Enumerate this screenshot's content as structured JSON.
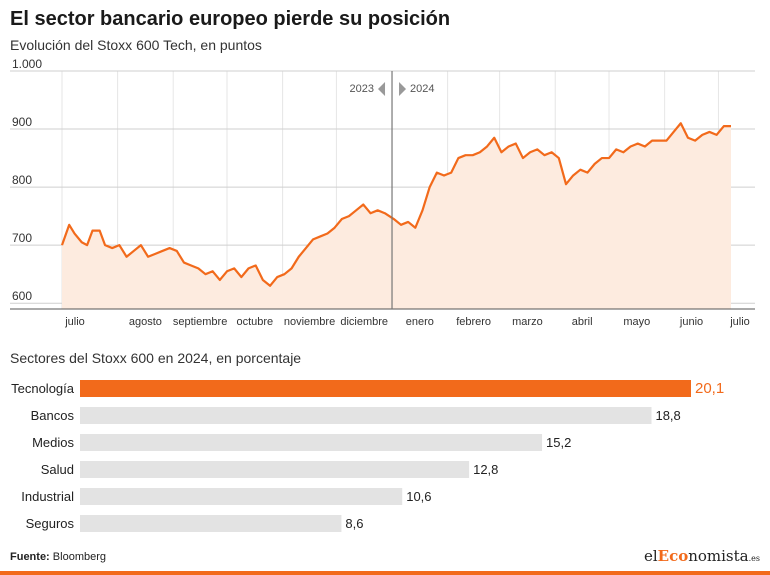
{
  "header": {
    "title": "El sector bancario europeo pierde su posición",
    "subtitle": "Evolución del Stoxx 600 Tech, en puntos"
  },
  "footer": {
    "source_label": "Fuente:",
    "source_value": "Bloomberg",
    "logo_prefix": "el",
    "logo_accent": "Eco",
    "logo_suffix": "nomista",
    "logo_tld": ".es"
  },
  "colors": {
    "accent": "#f26a1b",
    "area_fill": "#fdebdf",
    "bar_grey": "#e3e3e3",
    "grid": "#cfcfcf"
  },
  "chart_data": [
    {
      "type": "line",
      "subtitle": "Evolución del Stoxx 600 Tech, en puntos",
      "x_labels": [
        "julio",
        "agosto",
        "septiembre",
        "octubre",
        "noviembre",
        "diciembre",
        "enero",
        "febrero",
        "marzo",
        "abril",
        "mayo",
        "junio",
        "julio"
      ],
      "y_tick_labels": [
        "600",
        "700",
        "800",
        "900",
        "1.000"
      ],
      "y_ticks": [
        600,
        700,
        800,
        900,
        1000
      ],
      "ylim": [
        590,
        1000
      ],
      "divider_labels": {
        "left": "2023",
        "right": "2024"
      },
      "divider_date": "2024-01-01",
      "grid": true,
      "series": [
        {
          "x": [
            "2023-07-01",
            "2023-07-05",
            "2023-07-08",
            "2023-07-12",
            "2023-07-15",
            "2023-07-18",
            "2023-07-22",
            "2023-07-25",
            "2023-07-29",
            "2023-08-02",
            "2023-08-06",
            "2023-08-10",
            "2023-08-14",
            "2023-08-18",
            "2023-08-22",
            "2023-08-26",
            "2023-08-30",
            "2023-09-03",
            "2023-09-07",
            "2023-09-11",
            "2023-09-15",
            "2023-09-19",
            "2023-09-23",
            "2023-09-27",
            "2023-10-01",
            "2023-10-05",
            "2023-10-09",
            "2023-10-13",
            "2023-10-17",
            "2023-10-21",
            "2023-10-25",
            "2023-10-29",
            "2023-11-02",
            "2023-11-06",
            "2023-11-10",
            "2023-11-14",
            "2023-11-18",
            "2023-11-22",
            "2023-11-26",
            "2023-11-30",
            "2023-12-04",
            "2023-12-08",
            "2023-12-12",
            "2023-12-16",
            "2023-12-20",
            "2023-12-24",
            "2023-12-28",
            "2024-01-02",
            "2024-01-06",
            "2024-01-10",
            "2024-01-14",
            "2024-01-18",
            "2024-01-22",
            "2024-01-26",
            "2024-01-30",
            "2024-02-03",
            "2024-02-07",
            "2024-02-11",
            "2024-02-15",
            "2024-02-19",
            "2024-02-23",
            "2024-02-27",
            "2024-03-02",
            "2024-03-06",
            "2024-03-10",
            "2024-03-14",
            "2024-03-18",
            "2024-03-22",
            "2024-03-26",
            "2024-03-30",
            "2024-04-03",
            "2024-04-07",
            "2024-04-11",
            "2024-04-15",
            "2024-04-19",
            "2024-04-23",
            "2024-04-27",
            "2024-05-01",
            "2024-05-05",
            "2024-05-09",
            "2024-05-13",
            "2024-05-17",
            "2024-05-21",
            "2024-05-25",
            "2024-05-29",
            "2024-06-02",
            "2024-06-06",
            "2024-06-10",
            "2024-06-14",
            "2024-06-18",
            "2024-06-22",
            "2024-06-26",
            "2024-06-30",
            "2024-07-04",
            "2024-07-08"
          ],
          "y": [
            700,
            735,
            720,
            705,
            700,
            725,
            725,
            700,
            695,
            700,
            680,
            690,
            700,
            680,
            685,
            690,
            695,
            690,
            670,
            665,
            660,
            650,
            655,
            640,
            655,
            660,
            645,
            660,
            665,
            640,
            630,
            645,
            650,
            660,
            680,
            695,
            710,
            715,
            720,
            730,
            745,
            750,
            760,
            770,
            755,
            760,
            755,
            745,
            735,
            740,
            730,
            760,
            800,
            825,
            820,
            825,
            850,
            855,
            855,
            860,
            870,
            885,
            860,
            870,
            875,
            850,
            860,
            865,
            855,
            860,
            850,
            805,
            820,
            830,
            825,
            840,
            850,
            850,
            865,
            860,
            870,
            875,
            870,
            880,
            880,
            880,
            895,
            910,
            885,
            880,
            890,
            895,
            890,
            905,
            905
          ]
        }
      ]
    },
    {
      "type": "bar",
      "subtitle": "Sectores del Stoxx 600 en 2024, en porcentaje",
      "orientation": "horizontal",
      "categories": [
        "Tecnología",
        "Bancos",
        "Medios",
        "Salud",
        "Industrial",
        "Seguros"
      ],
      "values": [
        20.1,
        18.8,
        15.2,
        12.8,
        10.6,
        8.6
      ],
      "value_labels": [
        "20,1",
        "18,8",
        "15,2",
        "12,8",
        "10,6",
        "8,6"
      ],
      "highlight": "Tecnología",
      "xlim": [
        0,
        21.5
      ]
    }
  ]
}
